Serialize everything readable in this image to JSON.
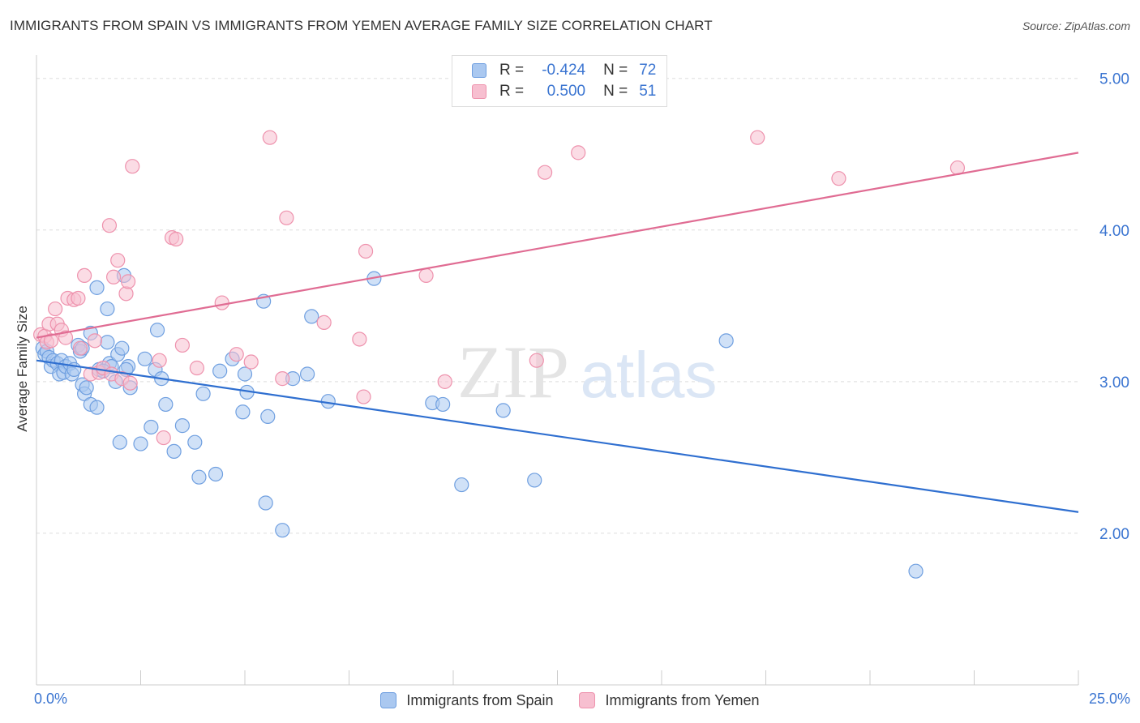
{
  "title": "IMMIGRANTS FROM SPAIN VS IMMIGRANTS FROM YEMEN AVERAGE FAMILY SIZE CORRELATION CHART",
  "source": "Source: ZipAtlas.com",
  "watermark": {
    "zip": "ZIP",
    "atlas": "atlas"
  },
  "legend_top": [
    {
      "r_label": "R =",
      "r_value": "-0.424",
      "n_label": "N =",
      "n_value": "72"
    },
    {
      "r_label": "R =",
      "r_value": "0.500",
      "n_label": "N =",
      "n_value": "51"
    }
  ],
  "colors": {
    "spain_fill": "#aac8f0",
    "spain_stroke": "#6f9fe0",
    "spain_line": "#2f6fd0",
    "yemen_fill": "#f7bfd0",
    "yemen_stroke": "#ee92ad",
    "yemen_line": "#e06c93",
    "axis_text": "#3b75d1",
    "grid": "#dddddd"
  },
  "chart_data": {
    "type": "scatter",
    "title": "IMMIGRANTS FROM SPAIN VS IMMIGRANTS FROM YEMEN AVERAGE FAMILY SIZE CORRELATION CHART",
    "xlabel": "",
    "ylabel": "Average Family Size",
    "xlim": [
      0,
      25
    ],
    "ylim": [
      1.0,
      5.1
    ],
    "x_tick_labels": {
      "min": "0.0%",
      "max": "25.0%"
    },
    "y_ticks": [
      2.0,
      3.0,
      4.0,
      5.0
    ],
    "y_tick_labels": [
      "2.00",
      "3.00",
      "4.00",
      "5.00"
    ],
    "grid": true,
    "legend": "bottom-center",
    "series": [
      {
        "name": "Immigrants from Spain",
        "r": -0.424,
        "n": 72,
        "trend": {
          "x0": 0,
          "y0": 3.14,
          "x1": 25,
          "y1": 2.14
        },
        "points": [
          [
            0.15,
            3.22
          ],
          [
            0.2,
            3.18
          ],
          [
            0.25,
            3.2
          ],
          [
            0.3,
            3.16
          ],
          [
            0.35,
            3.1
          ],
          [
            0.4,
            3.14
          ],
          [
            0.5,
            3.12
          ],
          [
            0.55,
            3.05
          ],
          [
            0.6,
            3.14
          ],
          [
            0.65,
            3.06
          ],
          [
            0.7,
            3.1
          ],
          [
            0.8,
            3.12
          ],
          [
            0.85,
            3.05
          ],
          [
            0.9,
            3.08
          ],
          [
            1.0,
            3.24
          ],
          [
            1.05,
            3.2
          ],
          [
            1.1,
            3.22
          ],
          [
            1.1,
            2.98
          ],
          [
            1.15,
            2.92
          ],
          [
            1.2,
            2.96
          ],
          [
            1.3,
            3.32
          ],
          [
            1.3,
            2.85
          ],
          [
            1.45,
            2.83
          ],
          [
            1.5,
            3.08
          ],
          [
            1.45,
            3.62
          ],
          [
            1.7,
            3.48
          ],
          [
            1.7,
            3.26
          ],
          [
            1.75,
            3.12
          ],
          [
            1.8,
            3.1
          ],
          [
            1.9,
            3.0
          ],
          [
            1.95,
            3.18
          ],
          [
            2.0,
            2.6
          ],
          [
            2.05,
            3.22
          ],
          [
            2.1,
            3.7
          ],
          [
            2.2,
            3.1
          ],
          [
            2.25,
            2.96
          ],
          [
            2.5,
            2.59
          ],
          [
            2.6,
            3.15
          ],
          [
            2.75,
            2.7
          ],
          [
            2.85,
            3.08
          ],
          [
            2.9,
            3.34
          ],
          [
            3.0,
            3.02
          ],
          [
            3.1,
            2.85
          ],
          [
            3.3,
            2.54
          ],
          [
            3.5,
            2.71
          ],
          [
            3.8,
            2.6
          ],
          [
            3.9,
            2.37
          ],
          [
            4.0,
            2.92
          ],
          [
            4.3,
            2.39
          ],
          [
            4.4,
            3.07
          ],
          [
            4.7,
            3.15
          ],
          [
            4.95,
            2.8
          ],
          [
            5.0,
            3.05
          ],
          [
            5.05,
            2.93
          ],
          [
            5.45,
            3.53
          ],
          [
            5.5,
            2.2
          ],
          [
            5.55,
            2.77
          ],
          [
            5.9,
            2.02
          ],
          [
            6.15,
            3.02
          ],
          [
            6.5,
            3.05
          ],
          [
            6.6,
            3.43
          ],
          [
            7.0,
            2.87
          ],
          [
            8.1,
            3.68
          ],
          [
            9.5,
            2.86
          ],
          [
            9.75,
            2.85
          ],
          [
            10.2,
            2.32
          ],
          [
            11.2,
            2.81
          ],
          [
            11.95,
            2.35
          ],
          [
            16.55,
            3.27
          ],
          [
            21.1,
            1.75
          ],
          [
            2.15,
            3.08
          ],
          [
            1.6,
            3.07
          ]
        ]
      },
      {
        "name": "Immigrants from Yemen",
        "r": 0.5,
        "n": 51,
        "trend": {
          "x0": 0,
          "y0": 3.29,
          "x1": 25,
          "y1": 4.51
        },
        "points": [
          [
            0.1,
            3.31
          ],
          [
            0.2,
            3.3
          ],
          [
            0.25,
            3.26
          ],
          [
            0.3,
            3.38
          ],
          [
            0.35,
            3.27
          ],
          [
            0.45,
            3.48
          ],
          [
            0.5,
            3.38
          ],
          [
            0.6,
            3.34
          ],
          [
            0.7,
            3.29
          ],
          [
            0.75,
            3.55
          ],
          [
            0.9,
            3.54
          ],
          [
            1.0,
            3.55
          ],
          [
            1.05,
            3.22
          ],
          [
            1.15,
            3.7
          ],
          [
            1.3,
            3.05
          ],
          [
            1.4,
            3.27
          ],
          [
            1.5,
            3.06
          ],
          [
            1.6,
            3.09
          ],
          [
            1.75,
            4.03
          ],
          [
            1.8,
            3.05
          ],
          [
            1.85,
            3.69
          ],
          [
            1.95,
            3.8
          ],
          [
            2.05,
            3.02
          ],
          [
            2.15,
            3.58
          ],
          [
            2.2,
            3.66
          ],
          [
            2.25,
            2.99
          ],
          [
            2.3,
            4.42
          ],
          [
            2.95,
            3.14
          ],
          [
            3.05,
            2.63
          ],
          [
            3.25,
            3.95
          ],
          [
            3.35,
            3.94
          ],
          [
            3.5,
            3.24
          ],
          [
            3.85,
            3.09
          ],
          [
            4.45,
            3.52
          ],
          [
            4.8,
            3.18
          ],
          [
            5.15,
            3.13
          ],
          [
            5.6,
            4.61
          ],
          [
            5.9,
            3.02
          ],
          [
            6.0,
            4.08
          ],
          [
            6.9,
            3.39
          ],
          [
            7.75,
            3.28
          ],
          [
            7.85,
            2.9
          ],
          [
            7.9,
            3.86
          ],
          [
            9.35,
            3.7
          ],
          [
            9.8,
            3.0
          ],
          [
            12.0,
            3.14
          ],
          [
            12.2,
            4.38
          ],
          [
            13.0,
            4.51
          ],
          [
            17.3,
            4.61
          ],
          [
            19.25,
            4.34
          ],
          [
            22.1,
            4.41
          ]
        ]
      }
    ]
  },
  "legend_bottom": [
    "Immigrants from Spain",
    "Immigrants from Yemen"
  ]
}
